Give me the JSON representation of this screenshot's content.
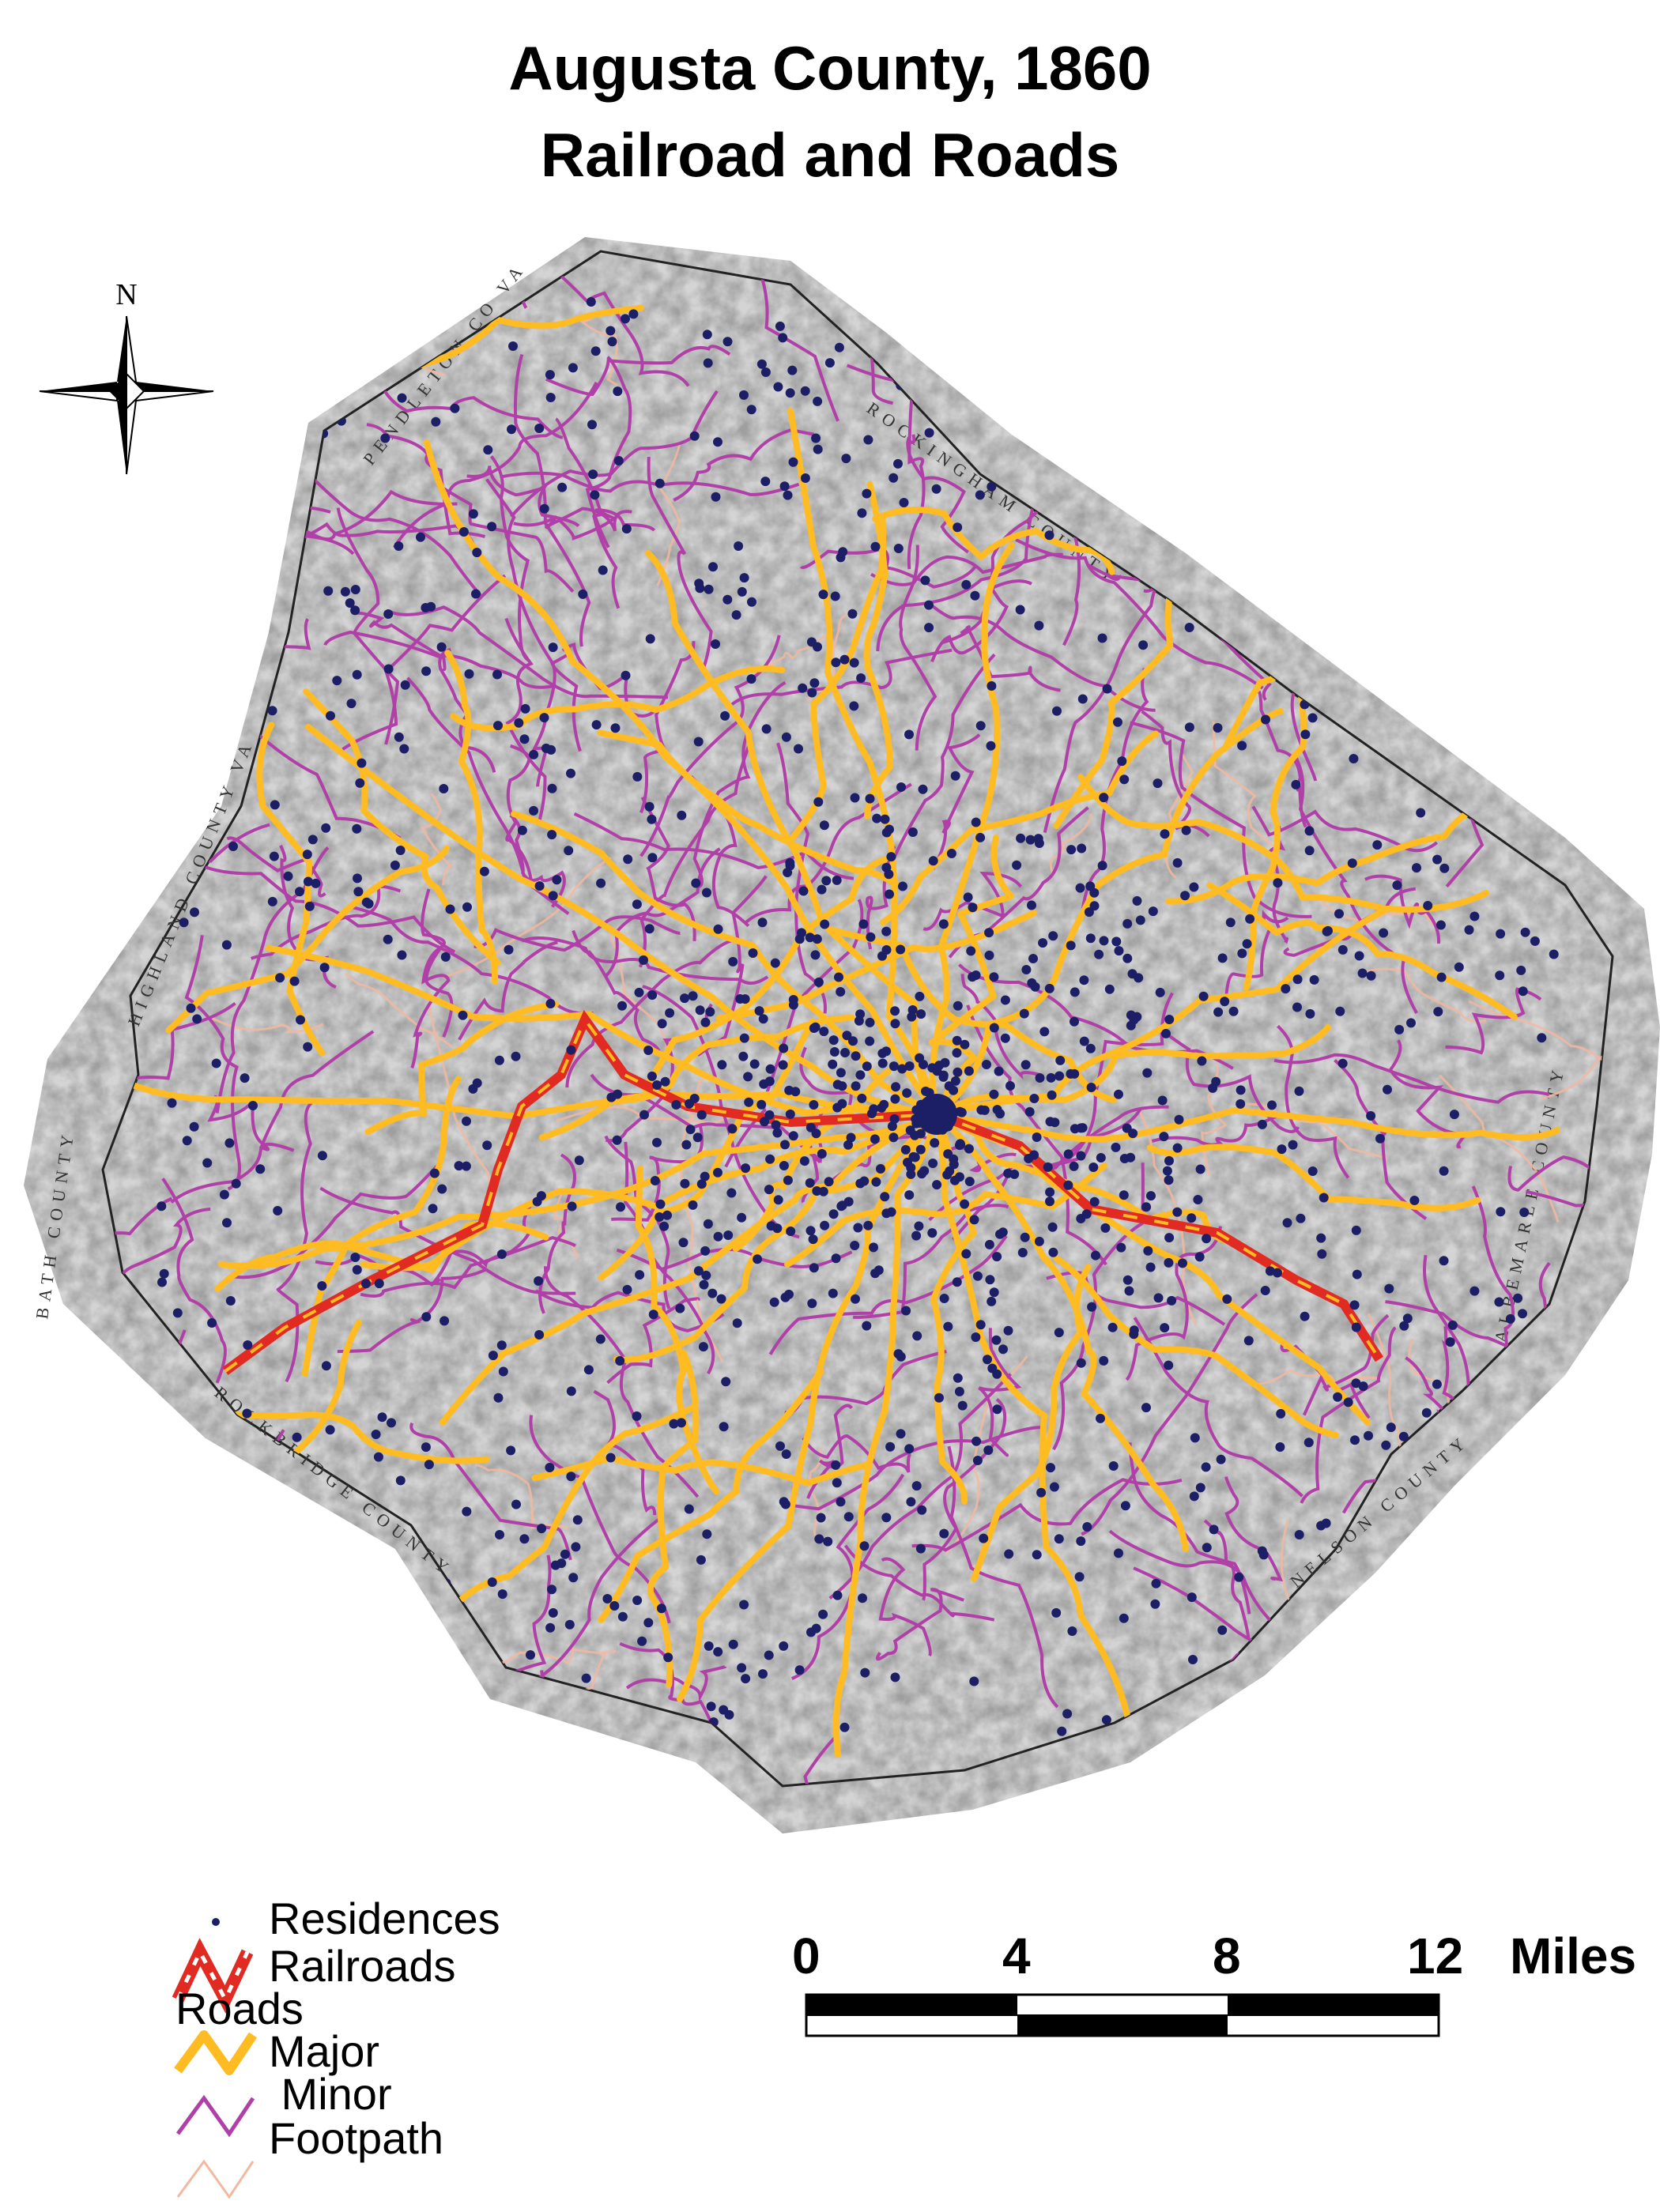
{
  "title": {
    "line1": "Augusta County, 1860",
    "line2": "Railroad and Roads"
  },
  "north_arrow": {
    "label": "N"
  },
  "boundary_labels": {
    "pendleton": "PENDLETON CO VA",
    "rockingham": "ROCKINGHAM COUNTY",
    "highland": "HIGHLAND COUNTY VA",
    "bath": "BATH COUNTY",
    "albemarle": "ALBEMARLE COUNTY",
    "rockbridge": "ROCKBRIDGE COUNTY",
    "nelson": "NELSON COUNTY"
  },
  "legend": {
    "residences": "Residences",
    "railroads": "Railroads",
    "roads_heading": "Roads",
    "major": "Major",
    "minor": " Minor",
    "footpath": "Footpath"
  },
  "scale_bar": {
    "ticks": [
      "0",
      "4",
      "8",
      "12"
    ],
    "unit": "Miles"
  },
  "colors": {
    "residence": "#1c1f66",
    "railroad": "#e02a22",
    "major_road": "#ffbb22",
    "minor_road": "#b040a8",
    "footpath": "#f2b8a0",
    "terrain": "#9a9a9a"
  }
}
